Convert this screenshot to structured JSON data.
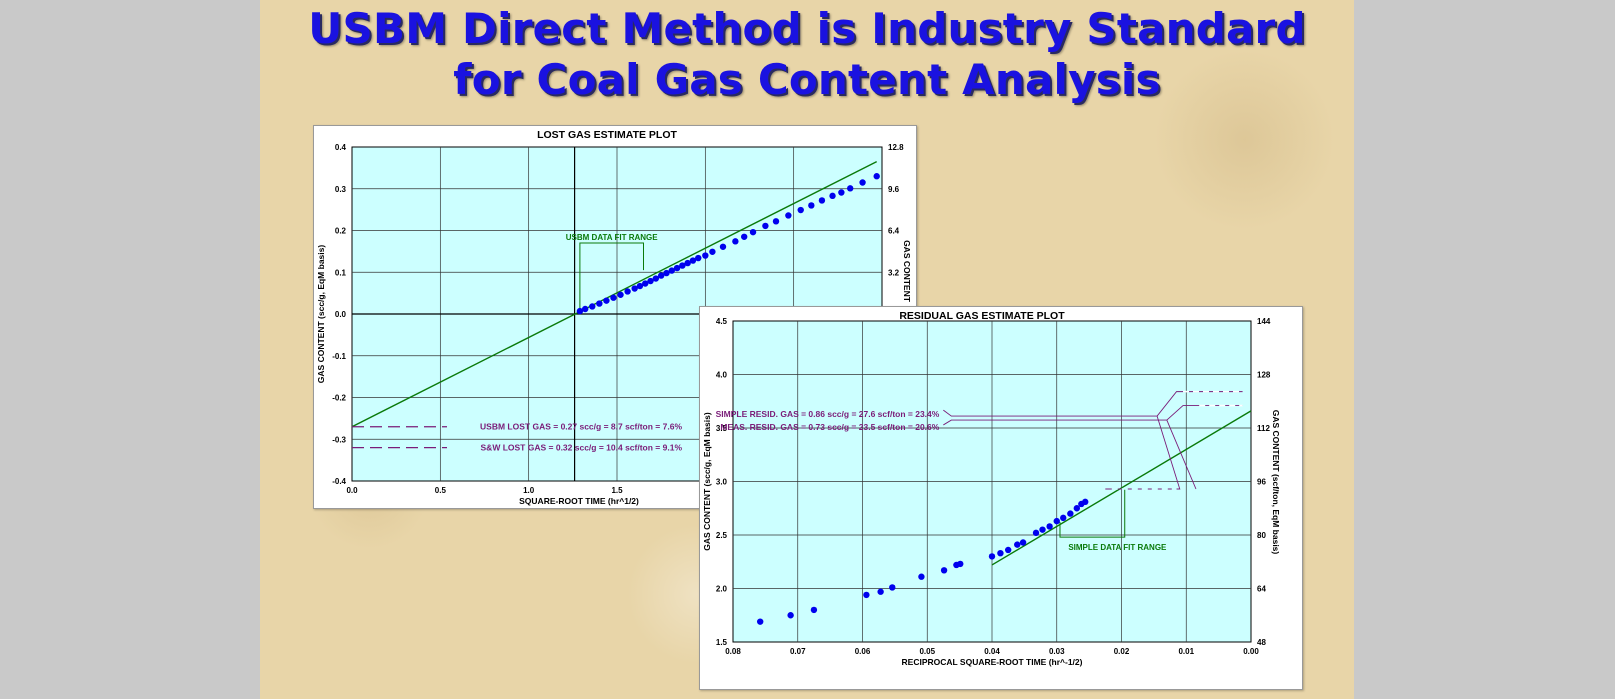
{
  "title": {
    "line1": "USBM Direct Method is Industry Standard",
    "line2": "for Coal Gas Content Analysis"
  },
  "colors": {
    "title": "#1a12e0",
    "plot_bg": "#ccffff",
    "grid": "#000000",
    "fit_line": "#0a7a0a",
    "points": "#0000ee",
    "annotation": "#7a1c78"
  },
  "chart_data": [
    {
      "type": "scatter",
      "title": "LOST GAS ESTIMATE PLOT",
      "xlabel": "SQUARE-ROOT TIME (hr^1/2)",
      "ylabel": "GAS CONTENT (scc/g, EqM basis)",
      "y2label": "GAS CONTENT",
      "xlim": [
        0.0,
        3.0
      ],
      "ylim": [
        -0.4,
        0.4
      ],
      "x_ticks": [
        "0.0",
        "0.5",
        "1.0",
        "1.5"
      ],
      "y_ticks": [
        "0.4",
        "0.3",
        "0.2",
        "0.1",
        "0.0",
        "-0.1",
        "-0.2",
        "-0.3",
        "-0.4"
      ],
      "y2_ticks": [
        "12.8",
        "9.6",
        "6.4",
        "3.2"
      ],
      "grid": true,
      "fit_line": {
        "x": [
          0.0,
          2.97
        ],
        "y": [
          -0.27,
          0.365
        ]
      },
      "zero_line_x": 1.26,
      "fit_range_label": "USBM DATA FIT RANGE",
      "fit_range_x": [
        1.29,
        1.65
      ],
      "lost_gas_estimates": [
        {
          "label": "USBM LOST GAS  =  0.27 scc/g  =    8.7 scf/ton  =  7.6%",
          "y": -0.27
        },
        {
          "label": "S&W LOST GAS  =  0.32 scc/g  =  10.4 scf/ton  =  9.1%",
          "y": -0.32
        }
      ],
      "series": [
        {
          "x": [
            1.29,
            1.32,
            1.36,
            1.4,
            1.44,
            1.48,
            1.52,
            1.56,
            1.6,
            1.63,
            1.66,
            1.69,
            1.72,
            1.75,
            1.78,
            1.81,
            1.84,
            1.87,
            1.9,
            1.93,
            1.96,
            2.0,
            2.04,
            2.1,
            2.17,
            2.22,
            2.27,
            2.34,
            2.4,
            2.47,
            2.54,
            2.6,
            2.66,
            2.72,
            2.77,
            2.82,
            2.89,
            2.97
          ],
          "y": [
            0.007,
            0.012,
            0.018,
            0.025,
            0.032,
            0.039,
            0.046,
            0.054,
            0.061,
            0.067,
            0.073,
            0.079,
            0.085,
            0.092,
            0.098,
            0.104,
            0.11,
            0.116,
            0.122,
            0.128,
            0.134,
            0.14,
            0.149,
            0.161,
            0.174,
            0.185,
            0.196,
            0.211,
            0.222,
            0.236,
            0.249,
            0.26,
            0.272,
            0.283,
            0.291,
            0.301,
            0.315,
            0.33
          ]
        }
      ]
    },
    {
      "type": "scatter",
      "title": "RESIDUAL GAS ESTIMATE PLOT",
      "xlabel": "RECIPROCAL SQUARE-ROOT TIME (hr^-1/2)",
      "ylabel": "GAS CONTENT (scc/g, EqM basis)",
      "y2label": "GAS CONTENT (scf/ton, EqM basis)",
      "xlim": [
        0.08,
        0.0
      ],
      "ylim": [
        1.5,
        4.5
      ],
      "x_ticks": [
        "0.08",
        "0.07",
        "0.06",
        "0.05",
        "0.04",
        "0.03",
        "0.02",
        "0.01",
        "0.00"
      ],
      "y_ticks": [
        "4.5",
        "4.0",
        "3.5",
        "3.0",
        "2.5",
        "2.0",
        "1.5"
      ],
      "y2_ticks": [
        "144",
        "128",
        "112",
        "96",
        "80",
        "64",
        "48"
      ],
      "grid": true,
      "fit_line": {
        "x": [
          0.04,
          0.0
        ],
        "y": [
          2.22,
          3.66
        ]
      },
      "fit_range_label": "SIMPLE DATA FIT RANGE",
      "fit_range_x": [
        0.0295,
        0.0195
      ],
      "residual_estimates": [
        {
          "label": "SIMPLE RESID. GAS  =  0.86 scc/g  =  27.6 scf/ton  =  23.4%",
          "y": 3.63
        },
        {
          "label": "MEAS. RESID. GAS  =  0.73 scc/g  =  23.5 scf/ton  =  20.6%",
          "y": 3.51
        }
      ],
      "series": [
        {
          "x": [
            0.0758,
            0.0711,
            0.0675,
            0.0594,
            0.0572,
            0.0554,
            0.0509,
            0.0474,
            0.0455,
            0.0449,
            0.04,
            0.0387,
            0.0375,
            0.0361,
            0.0352,
            0.0332,
            0.0322,
            0.0311,
            0.03,
            0.029,
            0.0279,
            0.0269,
            0.0262,
            0.0256
          ],
          "y": [
            1.69,
            1.75,
            1.8,
            1.94,
            1.97,
            2.01,
            2.11,
            2.17,
            2.22,
            2.23,
            2.3,
            2.33,
            2.36,
            2.41,
            2.43,
            2.52,
            2.55,
            2.58,
            2.63,
            2.66,
            2.7,
            2.75,
            2.79,
            2.81
          ]
        }
      ]
    }
  ]
}
